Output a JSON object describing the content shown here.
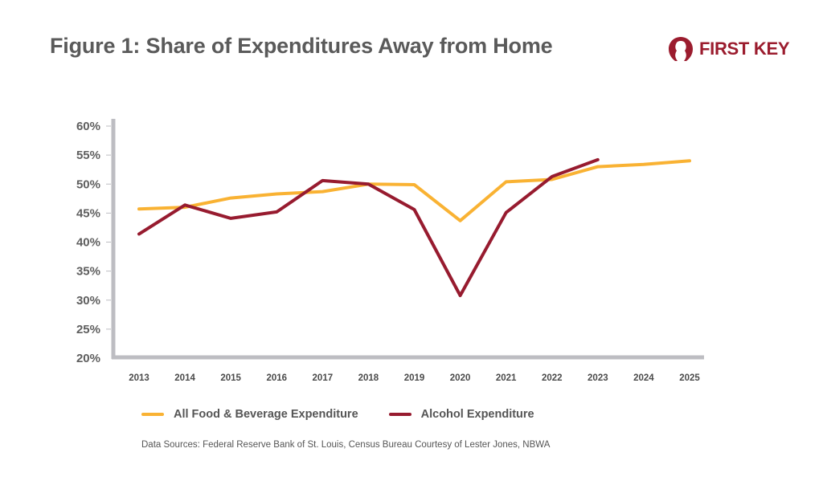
{
  "header": {
    "title": "Figure 1: Share of Expenditures Away from Home",
    "logo_text": "FIRST KEY",
    "logo_icon": "keyhole-icon"
  },
  "footer": {
    "source": "Data Sources: Federal Reserve Bank of St. Louis, Census Bureau Courtesy of Lester Jones, NBWA"
  },
  "colors": {
    "food": "#f9b233",
    "alcohol": "#971b2f",
    "axis": "#bdbdc2",
    "brand": "#9b1c2e"
  },
  "chart_data": {
    "type": "line",
    "title": "Figure 1: Share of Expenditures Away from Home",
    "xlabel": "",
    "ylabel": "",
    "x": [
      "2013",
      "2014",
      "2015",
      "2016",
      "2017",
      "2018",
      "2019",
      "2020",
      "2021",
      "2022",
      "2023",
      "2024",
      "2025"
    ],
    "ylim": [
      20,
      60
    ],
    "yticks": [
      20,
      25,
      30,
      35,
      40,
      45,
      50,
      55,
      60
    ],
    "ytick_labels": [
      "20%",
      "25%",
      "30%",
      "35%",
      "40%",
      "45%",
      "50%",
      "55%",
      "60%"
    ],
    "grid": false,
    "legend_position": "bottom-left",
    "series": [
      {
        "name": "All Food & Beverage Expenditure",
        "color": "#f9b233",
        "values": [
          45.7,
          46.0,
          47.6,
          48.3,
          48.7,
          50.0,
          49.9,
          43.7,
          50.4,
          50.8,
          53.0,
          53.4,
          54.0
        ]
      },
      {
        "name": "Alcohol Expenditure",
        "color": "#971b2f",
        "values": [
          41.4,
          46.4,
          44.1,
          45.2,
          50.6,
          50.0,
          45.6,
          30.8,
          45.1,
          51.3,
          54.2,
          null,
          null
        ]
      }
    ]
  }
}
